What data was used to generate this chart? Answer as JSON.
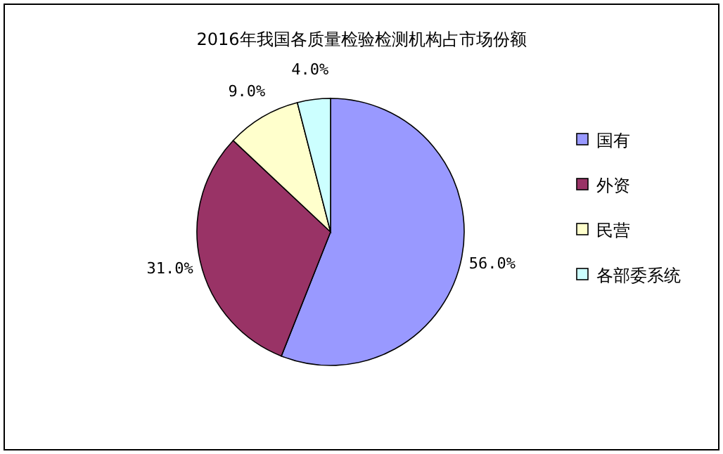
{
  "chart_data": {
    "type": "pie",
    "title": "2016年我国各质量检验检测机构占市场份额",
    "categories": [
      "国有",
      "外资",
      "民营",
      "各部委系统"
    ],
    "values": [
      56,
      31,
      9,
      4
    ],
    "colors": [
      "#9999ff",
      "#993366",
      "#ffffcc",
      "#ccffff"
    ],
    "value_labels": [
      "56.0%",
      "31.0%",
      "9.0%",
      "4.0%"
    ],
    "legend": "right"
  }
}
